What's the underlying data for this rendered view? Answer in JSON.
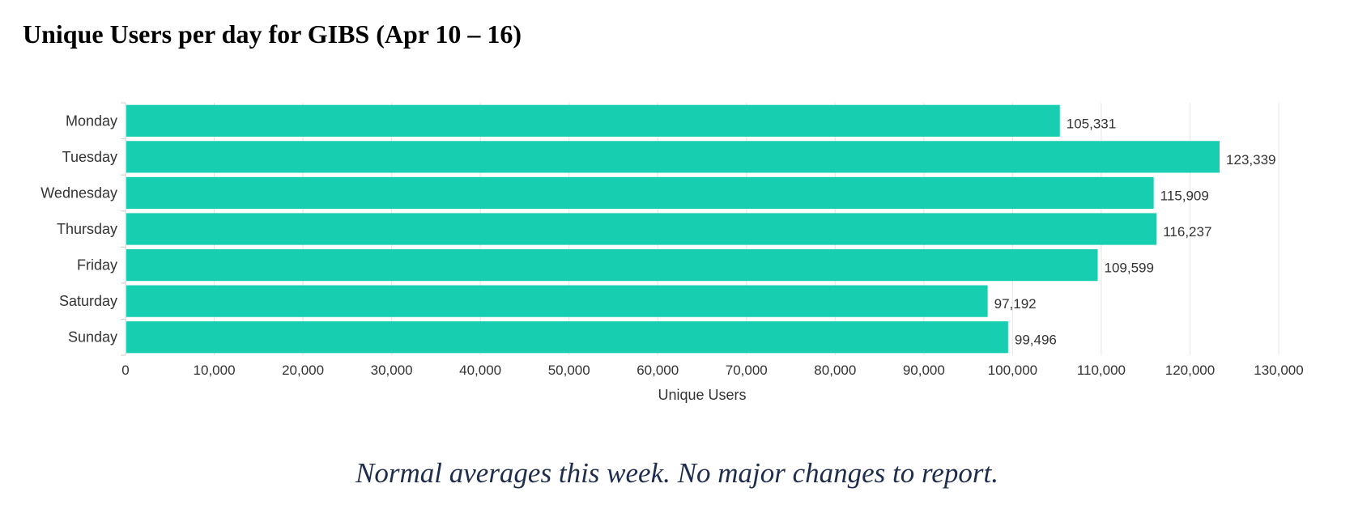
{
  "colors": {
    "bar": "#17ceb0",
    "text": "#333333",
    "grid": "#e6e6e6",
    "axis": "#cccccc",
    "caption": "#1f2d4d"
  },
  "caption": "Normal averages this week.  No major changes to report.",
  "chart_data": {
    "type": "bar",
    "orientation": "horizontal",
    "title": "Unique Users per day for GIBS (Apr 10 – 16)",
    "xlabel": "Unique Users",
    "ylabel": "",
    "categories": [
      "Monday",
      "Tuesday",
      "Wednesday",
      "Thursday",
      "Friday",
      "Saturday",
      "Sunday"
    ],
    "values": [
      105331,
      123339,
      115909,
      116237,
      109599,
      97192,
      99496
    ],
    "value_labels": [
      "105,331",
      "123,339",
      "115,909",
      "116,237",
      "109,599",
      "97,192",
      "99,496"
    ],
    "xlim": [
      0,
      130000
    ],
    "x_ticks": [
      0,
      10000,
      20000,
      30000,
      40000,
      50000,
      60000,
      70000,
      80000,
      90000,
      100000,
      110000,
      120000,
      130000
    ],
    "x_tick_labels": [
      "0",
      "10,000",
      "20,000",
      "30,000",
      "40,000",
      "50,000",
      "60,000",
      "70,000",
      "80,000",
      "90,000",
      "100,000",
      "110,000",
      "120,000",
      "130,000"
    ],
    "grid": true,
    "legend": "none"
  }
}
